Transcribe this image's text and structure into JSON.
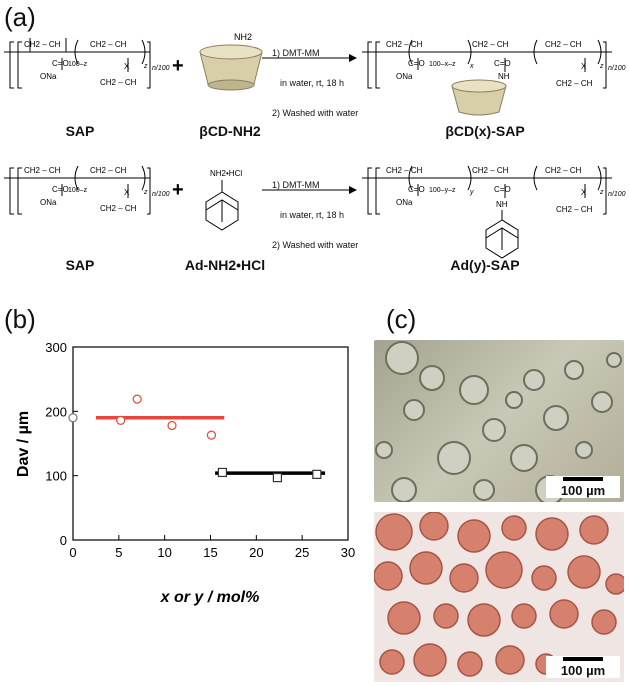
{
  "panels": {
    "a": "(a)",
    "b": "(b)",
    "c": "(c)"
  },
  "scheme": {
    "row1": {
      "reactant1": "SAP",
      "reactant2": "βCD-NH2",
      "product": "βCD(x)-SAP",
      "cond1": "1) DMT-MM",
      "cond2": "in water, rt, 18 h",
      "cond3": "2) Washed with water",
      "amine": "NH2"
    },
    "row2": {
      "reactant1": "SAP",
      "reactant2": "Ad-NH2•HCl",
      "product": "Ad(y)-SAP",
      "cond1": "1) DMT-MM",
      "cond2": "in water, rt, 18 h",
      "cond3": "2) Washed with water",
      "amine": "NH2•HCl"
    },
    "struct": {
      "ch2ch": "CH2 – CH",
      "co": "C=O",
      "ona": "ONa",
      "x": "X",
      "nh": "NH",
      "n100": "n/100",
      "sub_100z": "100–z",
      "sub_100xz": "100–x–z",
      "sub_100yz": "100–y–z",
      "z": "z",
      "xs": "x",
      "ys": "y",
      "bottom": "CH2 – CH",
      "plus": "+"
    }
  },
  "chart_data": {
    "type": "scatter",
    "xlabel": "x or y / mol%",
    "ylabel": "Dav / µm",
    "xlim": [
      0,
      30
    ],
    "ylim": [
      0,
      300
    ],
    "xticks": [
      0,
      5,
      10,
      15,
      20,
      25,
      30
    ],
    "yticks": [
      0,
      100,
      200,
      300
    ],
    "series": [
      {
        "marker": "circle",
        "color": "#777777",
        "points": [
          [
            0,
            190
          ]
        ]
      },
      {
        "marker": "circle",
        "color": "#e8463a",
        "points": [
          [
            5.2,
            186
          ],
          [
            7.0,
            219
          ],
          [
            10.8,
            178
          ],
          [
            15.1,
            163
          ]
        ],
        "fit": {
          "x": [
            2.5,
            16.5
          ],
          "y": [
            190,
            190
          ],
          "color": "#e8463a"
        }
      },
      {
        "marker": "square",
        "color": "#333333",
        "points": [
          [
            16.3,
            105
          ],
          [
            22.3,
            97
          ],
          [
            26.6,
            102
          ]
        ],
        "fit": {
          "x": [
            15.5,
            27.5
          ],
          "y": [
            104,
            104
          ],
          "color": "#000000"
        }
      }
    ]
  },
  "micrographs": {
    "top_scale": "100 µm",
    "bottom_scale": "100 µm"
  }
}
